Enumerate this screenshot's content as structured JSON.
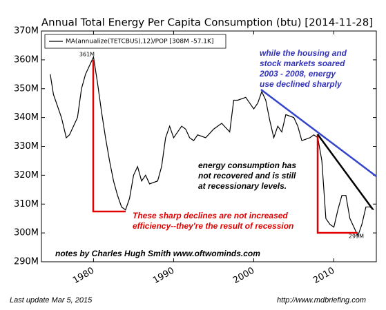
{
  "chart_data": {
    "type": "line",
    "title": "Annual Total Energy Per Capita Consumption (btu)  [2014-11-28]",
    "x": [
      1974.6,
      1975,
      1976,
      1976.6,
      1977,
      1978,
      1978.5,
      1979,
      1979.5,
      1980,
      1980.5,
      1981,
      1981.5,
      1982,
      1982.5,
      1983,
      1983.5,
      1984,
      1984.5,
      1985,
      1985.5,
      1986,
      1986.5,
      1987,
      1988,
      1988.5,
      1989,
      1989.5,
      1990,
      1990.5,
      1991,
      1991.5,
      1992,
      1992.5,
      1993,
      1994,
      1995,
      1996,
      1997,
      1997.5,
      1998,
      1999,
      2000,
      2000.5,
      2001,
      2001.5,
      2002,
      2002.5,
      2003,
      2003.5,
      2004,
      2005,
      2005.5,
      2006,
      2007,
      2007.5,
      2008,
      2008.5,
      2009,
      2009.5,
      2010,
      2010.5,
      2011,
      2011.5,
      2012,
      2012.5,
      2013,
      2013.5,
      2014,
      2014.5,
      2015
    ],
    "series": [
      {
        "name": "MA(annualize(TETCBUS),12)/POP [308M -57.1K]",
        "color": "#000000",
        "values": [
          355,
          348,
          340,
          333,
          334,
          340,
          350,
          355,
          358,
          361,
          352,
          342,
          333,
          325,
          318,
          313,
          309,
          308,
          312,
          320,
          323,
          318,
          320,
          317,
          318,
          323,
          333,
          337,
          333,
          335,
          337,
          336,
          333,
          332,
          334,
          333,
          336,
          338,
          335,
          346,
          346,
          347,
          343,
          345,
          349,
          346,
          339,
          333,
          337,
          335,
          341,
          340,
          337,
          332,
          333,
          334,
          333,
          325,
          305,
          303,
          302,
          308,
          313,
          313,
          305,
          302,
          299,
          303,
          309,
          309,
          308
        ]
      }
    ],
    "xlim": [
      1973.5,
      2015.3
    ],
    "xticks": [
      1980,
      1990,
      2000,
      2010
    ],
    "ylim": [
      290,
      370
    ],
    "yticks": [
      {
        "value": 290,
        "label": "290M"
      },
      {
        "value": 300,
        "label": "300M"
      },
      {
        "value": 310,
        "label": "310M"
      },
      {
        "value": 320,
        "label": "320M"
      },
      {
        "value": 330,
        "label": "330M"
      },
      {
        "value": 340,
        "label": "340M"
      },
      {
        "value": 350,
        "label": "350M"
      },
      {
        "value": 360,
        "label": "360M"
      },
      {
        "value": 370,
        "label": "370M"
      }
    ],
    "grid": false,
    "legend": "upper-left",
    "annotations": {
      "peak": "361M",
      "trough": "299M",
      "housing": [
        "while the housing and",
        "stock markets soared",
        "2003 - 2008, energy",
        "use declined sharply"
      ],
      "recovery": [
        "energy consumption has",
        "not recovered and is still",
        "at recessionary levels."
      ],
      "recession": [
        "These sharp declines are not increased",
        "efficiency--they're the result of recession"
      ],
      "notes": "notes by Charles Hugh Smith    www.oftwominds.com"
    },
    "footer_left": "Last update Mar  5, 2015",
    "footer_right": "http://www.mdbriefing.com"
  }
}
